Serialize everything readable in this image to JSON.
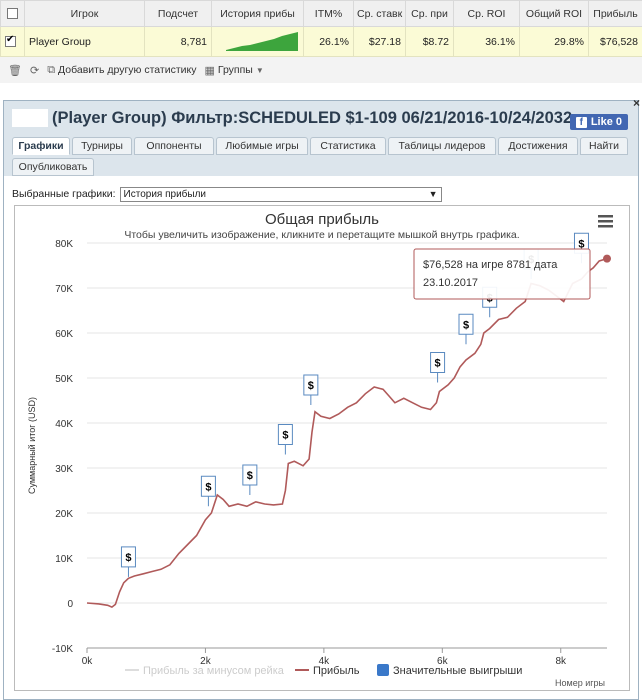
{
  "stats": {
    "headers": [
      "Игрок",
      "Подсчет",
      "История прибы",
      "ITM%",
      "Ср. ставк",
      "Ср. при",
      "Ср. ROI",
      "Общий ROI",
      "Прибыль"
    ],
    "row": {
      "checked": true,
      "player": "Player Group",
      "count": "8,781",
      "itm": "26.1%",
      "avg_stake": "$27.18",
      "avg_profit": "$8.72",
      "avg_roi": "36.1%",
      "total_roi": "29.8%",
      "profit": "$76,528"
    },
    "toolbar": {
      "add_label": "Добавить другую статистику",
      "groups_label": "Группы"
    }
  },
  "panel": {
    "title": "(Player Group) Фильтр:SCHEDULED $1-109 06/21/2016-10/24/2032",
    "like_label": "Like 0",
    "close_label": "×",
    "tabs": [
      "Графики",
      "Турниры",
      "Оппоненты",
      "Любимые игры",
      "Статистика",
      "Таблицы лидеров",
      "Достижения",
      "Найти",
      "Опубликовать"
    ],
    "selected_label": "Выбранные графики:",
    "selected_value": "История прибыли"
  },
  "chart_data": {
    "type": "line",
    "title": "Общая прибыль",
    "subtitle": "Чтобы увеличить изображение, кликните и перетащите мышкой внутрь графика.",
    "xlabel": "Номер игры",
    "ylabel": "Суммарный итог (USD)",
    "xlim": [
      0,
      8781
    ],
    "ylim": [
      -10000,
      80000
    ],
    "x_ticks": [
      "0k",
      "2k",
      "4k",
      "6k",
      "8k"
    ],
    "y_ticks": [
      "-10K",
      "0",
      "10K",
      "20K",
      "30K",
      "40K",
      "50K",
      "60K",
      "70K",
      "80K"
    ],
    "legend": [
      "Прибыль за минусом рейка",
      "Прибыль",
      "Значительные выигрыши"
    ],
    "series": [
      {
        "name": "Прибыль",
        "color": "#b05a5a",
        "points": [
          [
            0,
            0
          ],
          [
            200,
            -200
          ],
          [
            350,
            -500
          ],
          [
            420,
            -900
          ],
          [
            480,
            -300
          ],
          [
            550,
            2500
          ],
          [
            620,
            4500
          ],
          [
            700,
            5500
          ],
          [
            800,
            6000
          ],
          [
            950,
            6500
          ],
          [
            1100,
            7000
          ],
          [
            1250,
            7500
          ],
          [
            1400,
            8500
          ],
          [
            1550,
            11000
          ],
          [
            1700,
            13000
          ],
          [
            1850,
            15000
          ],
          [
            2000,
            18500
          ],
          [
            2100,
            20000
          ],
          [
            2200,
            24000
          ],
          [
            2300,
            23000
          ],
          [
            2400,
            21500
          ],
          [
            2550,
            22000
          ],
          [
            2700,
            21500
          ],
          [
            2850,
            22500
          ],
          [
            3000,
            22000
          ],
          [
            3150,
            21800
          ],
          [
            3300,
            22000
          ],
          [
            3350,
            25000
          ],
          [
            3400,
            31000
          ],
          [
            3500,
            31500
          ],
          [
            3650,
            30500
          ],
          [
            3750,
            32000
          ],
          [
            3800,
            38000
          ],
          [
            3850,
            42500
          ],
          [
            3950,
            41500
          ],
          [
            4100,
            41000
          ],
          [
            4250,
            42000
          ],
          [
            4400,
            43500
          ],
          [
            4550,
            44500
          ],
          [
            4700,
            46500
          ],
          [
            4850,
            48000
          ],
          [
            5000,
            47500
          ],
          [
            5100,
            46000
          ],
          [
            5200,
            44500
          ],
          [
            5350,
            45500
          ],
          [
            5500,
            44500
          ],
          [
            5650,
            43500
          ],
          [
            5800,
            43000
          ],
          [
            5900,
            44500
          ],
          [
            5950,
            47000
          ],
          [
            6100,
            48500
          ],
          [
            6200,
            50000
          ],
          [
            6300,
            52500
          ],
          [
            6400,
            54000
          ],
          [
            6550,
            55500
          ],
          [
            6650,
            57500
          ],
          [
            6700,
            60000
          ],
          [
            6800,
            61000
          ],
          [
            6950,
            63000
          ],
          [
            7100,
            63500
          ],
          [
            7250,
            65500
          ],
          [
            7400,
            67000
          ],
          [
            7500,
            71000
          ],
          [
            7650,
            70500
          ],
          [
            7800,
            69500
          ],
          [
            7950,
            68000
          ],
          [
            8050,
            67000
          ],
          [
            8200,
            71000
          ],
          [
            8350,
            72000
          ],
          [
            8450,
            73500
          ],
          [
            8550,
            74500
          ],
          [
            8650,
            76000
          ],
          [
            8781,
            76528
          ]
        ]
      }
    ],
    "markers": [
      {
        "x": 700,
        "y": 5800
      },
      {
        "x": 2050,
        "y": 21500
      },
      {
        "x": 2750,
        "y": 24000
      },
      {
        "x": 3350,
        "y": 33000
      },
      {
        "x": 3780,
        "y": 44000
      },
      {
        "x": 5920,
        "y": 49000
      },
      {
        "x": 6400,
        "y": 57500
      },
      {
        "x": 6800,
        "y": 63500
      },
      {
        "x": 7500,
        "y": 72000
      },
      {
        "x": 8350,
        "y": 75500
      }
    ],
    "tooltip": {
      "line1": "$76,528 на игре 8781 дата",
      "line2": "23.10.2017"
    }
  }
}
